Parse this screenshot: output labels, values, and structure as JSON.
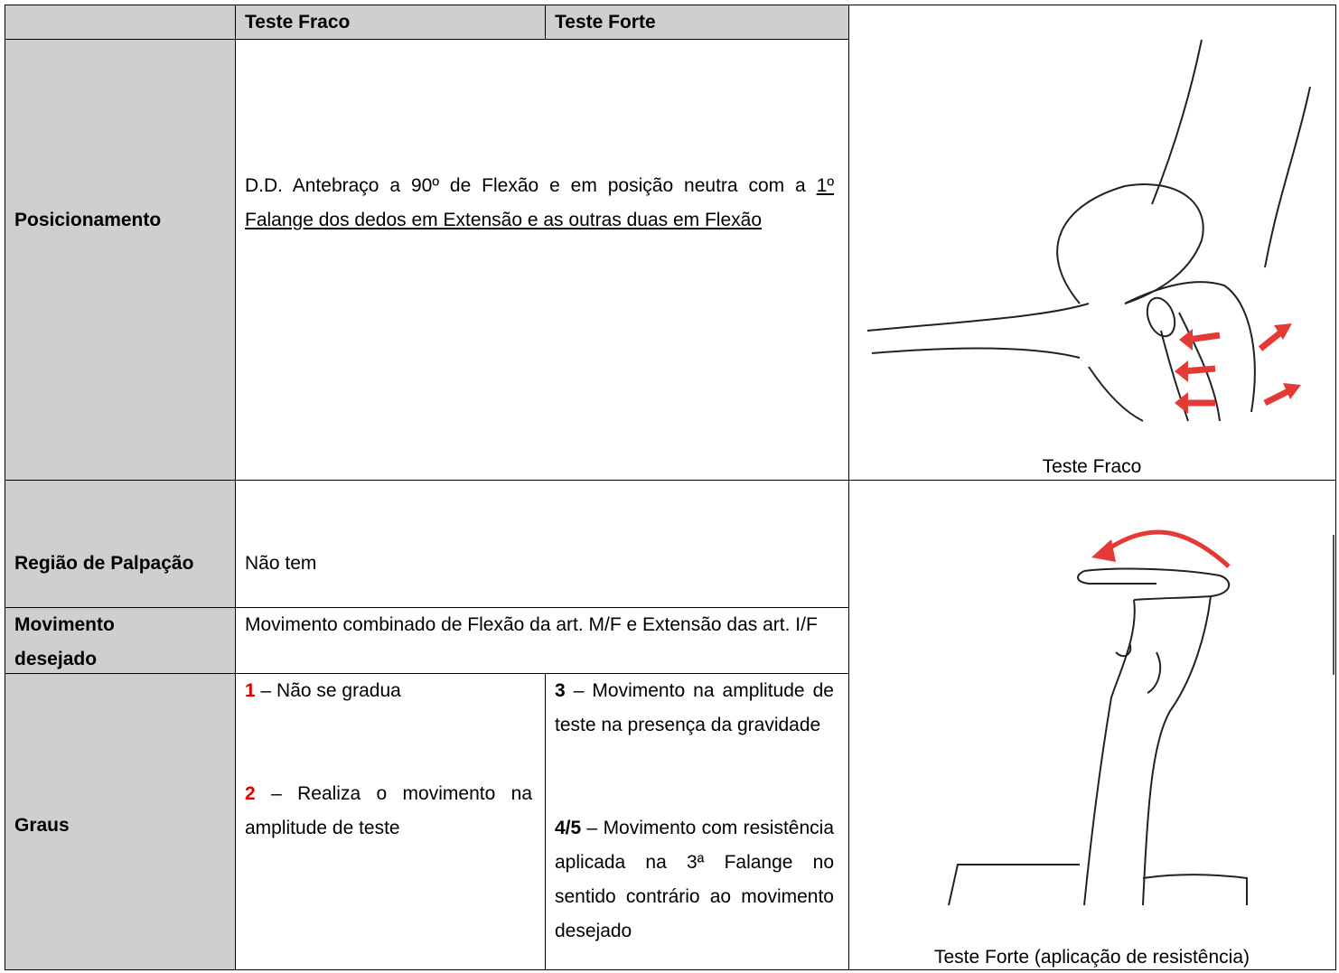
{
  "header": {
    "col1": "Teste Fraco",
    "col2": "Teste Forte"
  },
  "rows": {
    "posicionamento": {
      "label": "Posicionamento",
      "text": "D.D. Antebraço a 90º de Flexão e em posição neutra com a ",
      "underlined": "1º Falange dos dedos em Extensão e as outras duas em Flexão"
    },
    "palpacao": {
      "label": "Região de Palpação",
      "text": "Não tem"
    },
    "movimento": {
      "label": "Movimento desejado",
      "text": "Movimento combinado de Flexão da art. M/F e Extensão das art. I/F"
    },
    "graus": {
      "label": "Graus",
      "weak": [
        {
          "grade": "1",
          "text": "– Não se gradua"
        },
        {
          "grade": "2",
          "text": "– Realiza o movimento na amplitude de teste"
        }
      ],
      "strong": [
        {
          "grade": "3",
          "text": "– Movimento na amplitude de teste na presença da gravidade"
        },
        {
          "grade": "4/5",
          "text": "– Movimento com resistência aplicada na 3ª Falange no sentido contrário ao movimento desejado"
        }
      ]
    }
  },
  "figures": [
    {
      "caption": "Teste Fraco"
    },
    {
      "caption": "Teste Forte (aplicação de resistência)"
    }
  ]
}
